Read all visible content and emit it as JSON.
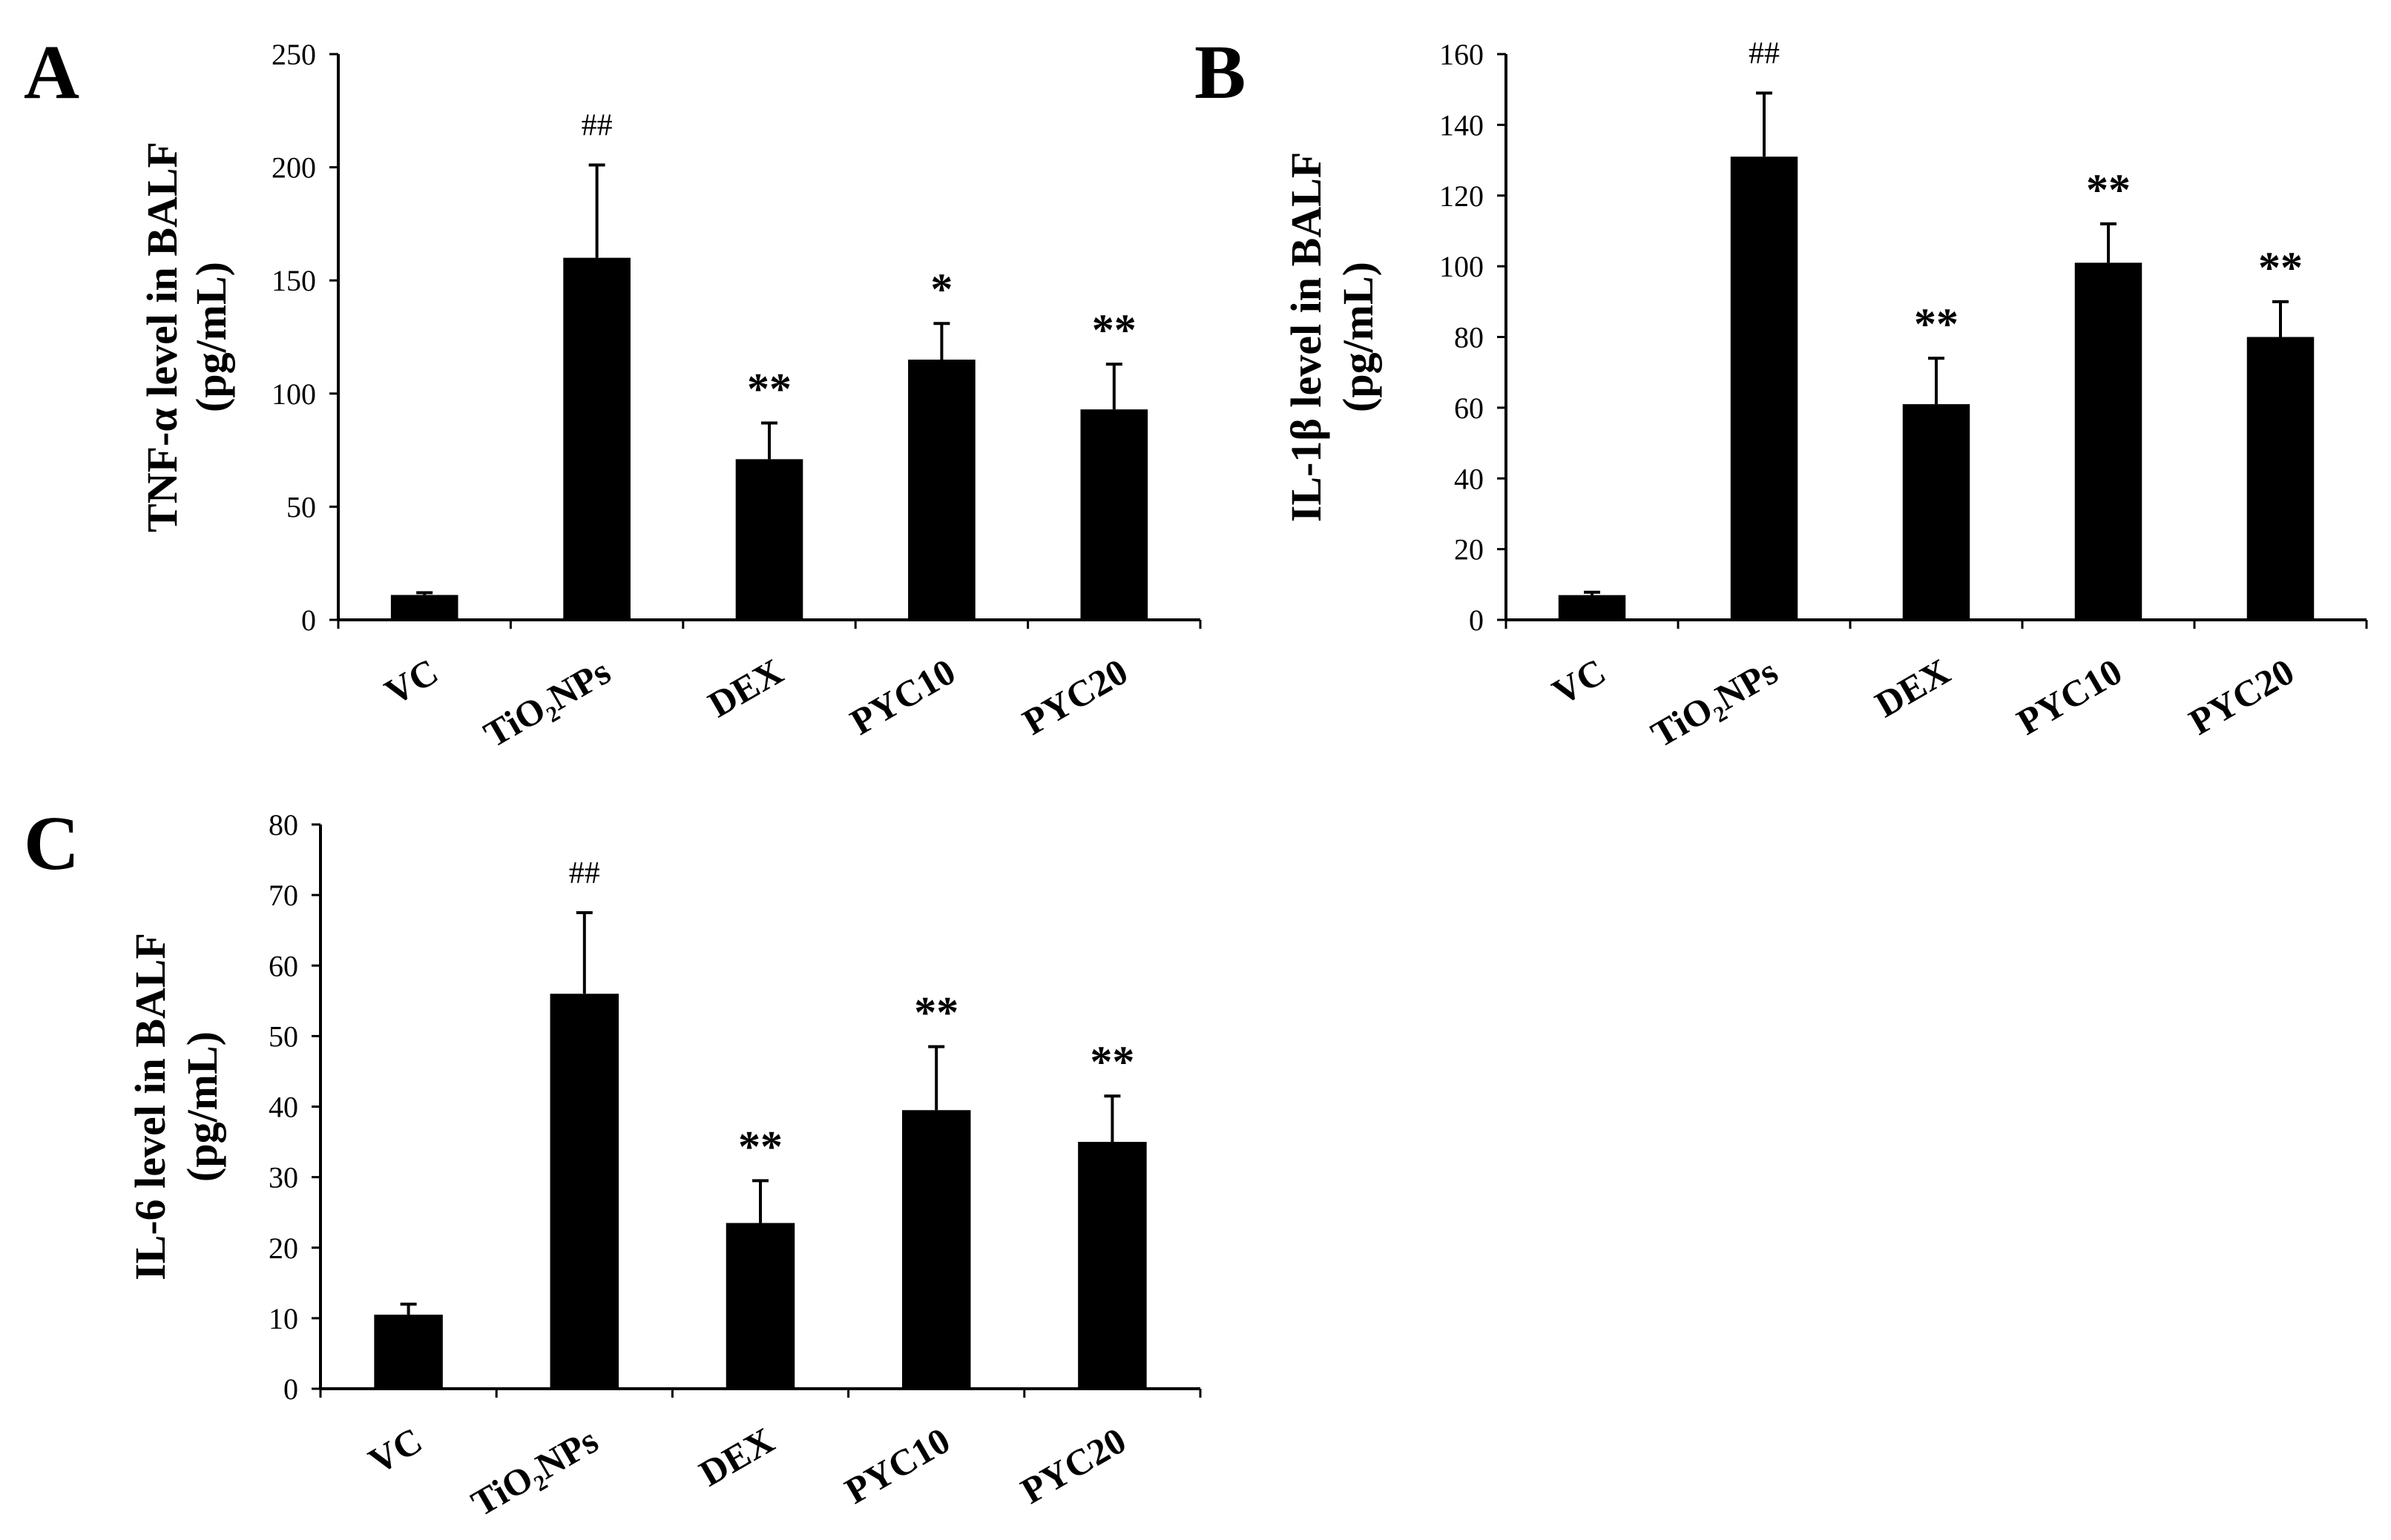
{
  "figure": {
    "panels": [
      {
        "id": "A",
        "label": "A"
      },
      {
        "id": "B",
        "label": "B"
      },
      {
        "id": "C",
        "label": "C"
      }
    ]
  },
  "chart_data": [
    {
      "panel": "A",
      "type": "bar",
      "title": "",
      "xlabel": "",
      "ylabel_line1": "TNF-α level in BALF",
      "ylabel_line2": "(pg/mL)",
      "ylim": [
        0,
        250
      ],
      "yticks": [
        0,
        50,
        100,
        150,
        200,
        250
      ],
      "categories": [
        "VC",
        "TiO₂NPs",
        "DEX",
        "PYC10",
        "PYC20"
      ],
      "values": [
        11,
        160,
        71,
        115,
        93
      ],
      "errors": [
        1,
        41,
        16,
        16,
        20
      ],
      "annotations": [
        "",
        "##",
        "**",
        "*",
        "**"
      ],
      "bar_color": "#000000"
    },
    {
      "panel": "B",
      "type": "bar",
      "title": "",
      "xlabel": "",
      "ylabel_line1": "IL-1β level in BALF",
      "ylabel_line2": "(pg/mL)",
      "ylim": [
        0,
        160
      ],
      "yticks": [
        0,
        20,
        40,
        60,
        80,
        100,
        120,
        140,
        160
      ],
      "categories": [
        "VC",
        "TiO₂NPs",
        "DEX",
        "PYC10",
        "PYC20"
      ],
      "values": [
        7,
        131,
        61,
        101,
        80
      ],
      "errors": [
        0.8,
        18,
        13,
        11,
        10
      ],
      "annotations": [
        "",
        "##",
        "**",
        "**",
        "**"
      ],
      "bar_color": "#000000"
    },
    {
      "panel": "C",
      "type": "bar",
      "title": "",
      "xlabel": "",
      "ylabel_line1": "IL-6 level in BALF",
      "ylabel_line2": "(pg/mL)",
      "ylim": [
        0,
        80
      ],
      "yticks": [
        0,
        10,
        20,
        30,
        40,
        50,
        60,
        70,
        80
      ],
      "categories": [
        "VC",
        "TiO₂NPs",
        "DEX",
        "PYC10",
        "PYC20"
      ],
      "values": [
        10.5,
        56,
        23.5,
        39.5,
        35
      ],
      "errors": [
        1.5,
        11.5,
        6,
        9,
        6.5
      ],
      "annotations": [
        "",
        "##",
        "**",
        "**",
        "**"
      ],
      "bar_color": "#000000"
    }
  ]
}
